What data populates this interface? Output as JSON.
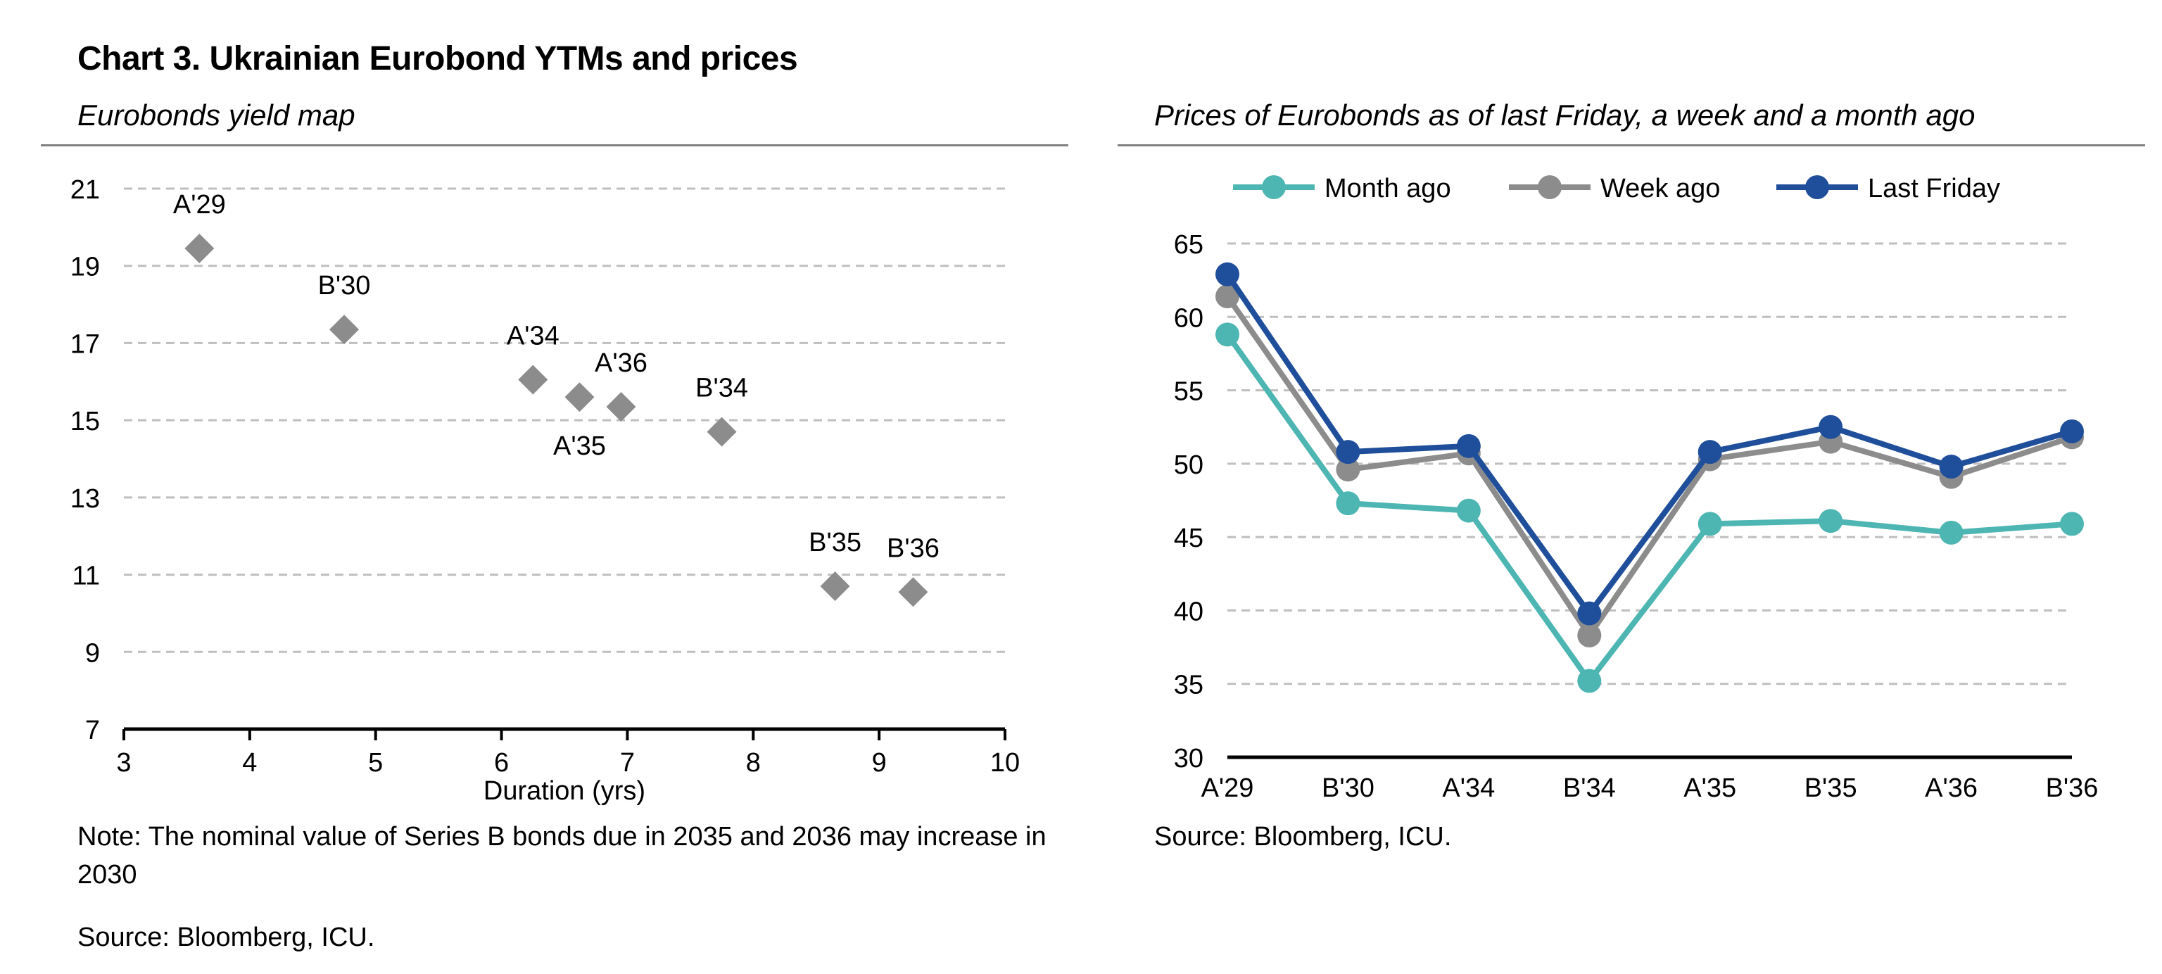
{
  "title": "Chart 3. Ukrainian Eurobond YTMs and prices",
  "left": {
    "subtitle": "Eurobonds yield map",
    "note": "Note: The nominal value of Series B bonds due in 2035 and 2036 may increase in 2030",
    "source": "Source: Bloomberg, ICU."
  },
  "right": {
    "subtitle": "Prices of Eurobonds as of last Friday, a week and a month ago",
    "source": "Source: Bloomberg, ICU."
  },
  "colors": {
    "marker": "#8c8c8c",
    "month_ago": "#4db6b2",
    "week_ago": "#8c8c8c",
    "last_friday": "#1f4e9a",
    "grid": "#bfbfbf"
  },
  "chart_data": [
    {
      "type": "scatter",
      "title": "Eurobonds yield map",
      "xlabel": "Duration (yrs)",
      "ylabel": "",
      "xlim": [
        3,
        10
      ],
      "ylim": [
        7,
        21
      ],
      "xticks": [
        3,
        4,
        5,
        6,
        7,
        8,
        9,
        10
      ],
      "yticks": [
        7,
        9,
        11,
        13,
        15,
        17,
        19,
        21
      ],
      "grid": true,
      "points": [
        {
          "label": "A'29",
          "x": 3.6,
          "y": 19.45,
          "label_pos": "above"
        },
        {
          "label": "B'30",
          "x": 4.75,
          "y": 17.35,
          "label_pos": "above"
        },
        {
          "label": "A'34",
          "x": 6.25,
          "y": 16.05,
          "label_pos": "above"
        },
        {
          "label": "A'35",
          "x": 6.62,
          "y": 15.6,
          "label_pos": "below"
        },
        {
          "label": "A'36",
          "x": 6.95,
          "y": 15.35,
          "label_pos": "above"
        },
        {
          "label": "B'34",
          "x": 7.75,
          "y": 14.7,
          "label_pos": "above"
        },
        {
          "label": "B'35",
          "x": 8.65,
          "y": 10.7,
          "label_pos": "above"
        },
        {
          "label": "B'36",
          "x": 9.27,
          "y": 10.55,
          "label_pos": "above"
        }
      ]
    },
    {
      "type": "line",
      "title": "Prices of Eurobonds as of last Friday, a week and a month ago",
      "xlabel": "",
      "ylabel": "",
      "categories": [
        "A'29",
        "B'30",
        "A'34",
        "B'34",
        "A'35",
        "B'35",
        "A'36",
        "B'36"
      ],
      "ylim": [
        30,
        65
      ],
      "yticks": [
        30,
        35,
        40,
        45,
        50,
        55,
        60,
        65
      ],
      "grid": true,
      "legend": "top",
      "series": [
        {
          "name": "Month ago",
          "values": [
            58.8,
            47.3,
            46.8,
            35.2,
            45.9,
            46.1,
            45.3,
            45.9
          ]
        },
        {
          "name": "Week ago",
          "values": [
            61.4,
            49.6,
            50.7,
            38.3,
            50.3,
            51.5,
            49.1,
            51.8
          ]
        },
        {
          "name": "Last Friday",
          "values": [
            62.9,
            50.8,
            51.2,
            39.8,
            50.8,
            52.5,
            49.8,
            52.2
          ]
        }
      ]
    }
  ]
}
